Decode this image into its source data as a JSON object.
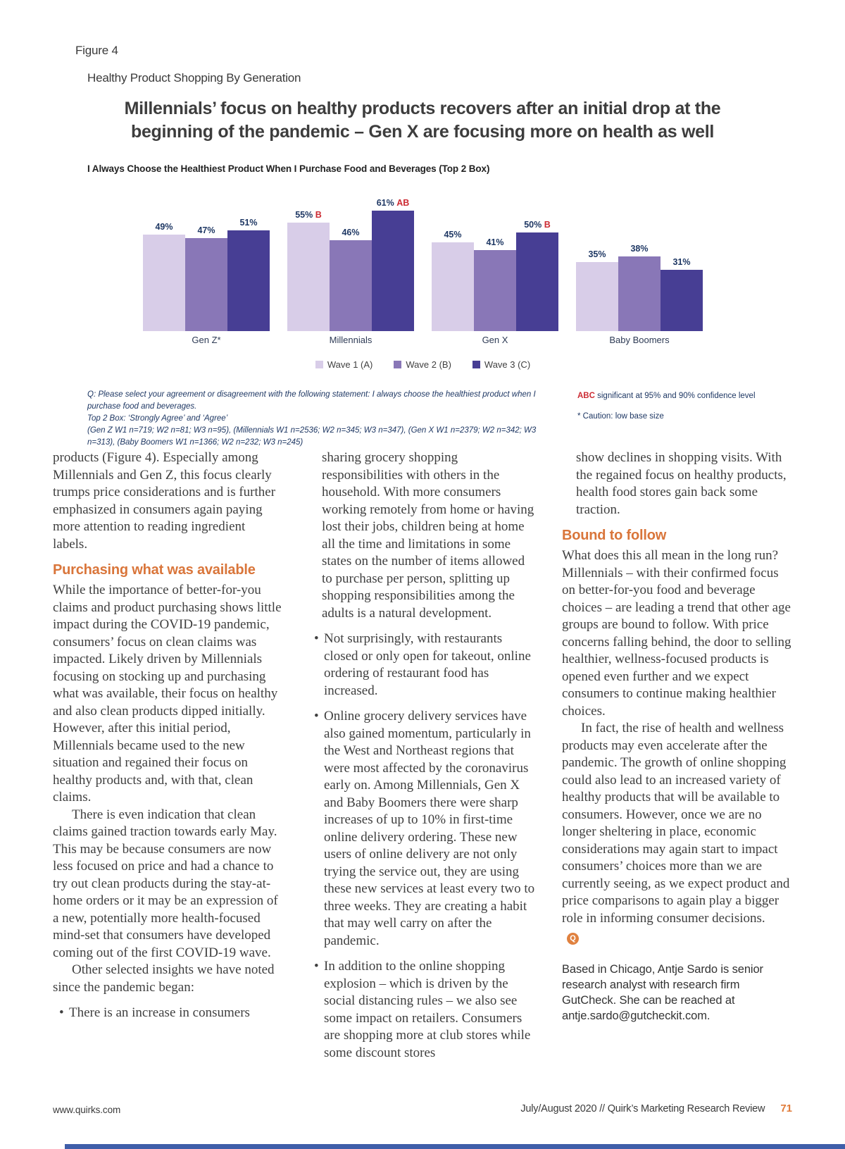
{
  "colors": {
    "accent_orange": "#d9753a",
    "sig_red": "#cc2b33",
    "chart_label_navy": "#1f3864",
    "footnote_navy": "#1f3864",
    "page_edge_blue": "#3f5ea9"
  },
  "figure": {
    "label": "Figure 4",
    "subtitle": "Healthy Product Shopping By Generation",
    "title_line1": "Millennials’ focus on healthy products recovers after an initial drop at the",
    "title_line2": "beginning of the pandemic – Gen X are focusing more on health as well"
  },
  "chart_data": {
    "type": "bar",
    "title": "I Always Choose the Healthiest Product When I Purchase Food and Beverages (Top 2 Box)",
    "categories": [
      "Gen Z*",
      "Millennials",
      "Gen X",
      "Baby Boomers"
    ],
    "series": [
      {
        "name": "Wave 1 (A)",
        "color": "#d8cde8",
        "values": [
          49,
          55,
          45,
          35
        ],
        "sig": [
          "",
          "B",
          "",
          ""
        ]
      },
      {
        "name": "Wave 2 (B)",
        "color": "#8977b7",
        "values": [
          47,
          46,
          41,
          38
        ],
        "sig": [
          "",
          "",
          "",
          ""
        ]
      },
      {
        "name": "Wave 3 (C)",
        "color": "#473e94",
        "values": [
          51,
          61,
          50,
          31
        ],
        "sig": [
          "",
          "AB",
          "B",
          ""
        ]
      }
    ],
    "ylim": [
      0,
      70
    ],
    "grid": false,
    "legend_position": "bottom"
  },
  "footnotes": {
    "line1": "Q: Please select your agreement or disagreement with the following statement: I always choose the healthiest product when I purchase food and beverages.",
    "line2": "Top 2 Box: ‘Strongly Agree’ and ‘Agree’",
    "line3": "(Gen Z W1 n=719; W2 n=81; W3 n=95), (Millennials W1 n=2536; W2 n=345; W3 n=347), (Gen X W1 n=2379; W2 n=342; W3 n=313), (Baby Boomers W1 n=1366; W2 n=232; W3 n=245)",
    "sig_abc": "ABC",
    "sig_rest": " significant at 95% and 90% confidence level",
    "caution": "* Caution: low base size"
  },
  "article": {
    "bullet_glyph": "•",
    "end_marker_glyph": "Q",
    "columns": [
      {
        "blocks": [
          {
            "t": "p",
            "text": "products (Figure 4). Especially among Millennials and Gen Z, this focus clearly trumps price considerations and is further emphasized in consumers again paying more attention to reading ingredient labels."
          },
          {
            "t": "h",
            "text": "Purchasing what was available"
          },
          {
            "t": "p",
            "text": "While the importance of better-for-you claims and product purchasing shows little impact during the COVID-19 pandemic, consumers’ focus on clean claims was impacted. Likely driven by Millennials focusing on stocking up and purchasing what was available, their focus on healthy and also clean products dipped initially. However, after this initial period, Millennials became used to the new situation and regained their focus on healthy products and, with that, clean claims."
          },
          {
            "t": "pi",
            "text": "There is even indication that clean claims gained traction towards early May. This may be because consumers are now less focused on price and had a chance to try out clean products during the stay-at-home orders or it may be an expression of a new, potentially more health-focused mind-set that consumers have developed coming out of the first COVID-19 wave."
          },
          {
            "t": "pi",
            "text": "Other selected insights we have noted since the pandemic began:"
          },
          {
            "t": "b",
            "text": "There is an increase in consumers"
          }
        ]
      },
      {
        "blocks": [
          {
            "t": "cont",
            "text": "sharing grocery shopping responsibilities with others in the household. With more consumers working remotely from home or having lost their jobs, children being at home all the time and limitations in some states on the number of items allowed to purchase per person, splitting up shopping responsibilities among the adults is a natural development."
          },
          {
            "t": "b",
            "text": "Not surprisingly, with restaurants closed or only open for takeout, online ordering of restaurant food has increased."
          },
          {
            "t": "b",
            "text": "Online grocery delivery services have also gained momentum, particularly in the West and Northeast regions that were most affected by the coronavirus early on. Among Millennials, Gen X and Baby Boomers there were sharp increases of up to 10% in first-time online delivery ordering. These new users of online delivery are not only trying the service out, they are using these new services at least every two to three weeks. They are creating a habit that may well carry on after the pandemic."
          },
          {
            "t": "b",
            "text": "In addition to the online shopping explosion – which is driven by the social distancing rules – we also see some impact on retailers. Consumers are shopping more at club stores while some discount stores"
          }
        ]
      },
      {
        "blocks": [
          {
            "t": "cont",
            "text": "show declines in shopping visits. With the regained focus on healthy products, health food stores gain back some traction."
          },
          {
            "t": "h",
            "text": "Bound to follow"
          },
          {
            "t": "p",
            "text": "What does this all mean in the long run? Millennials – with their confirmed focus on better-for-you food and beverage choices – are leading a trend that other age groups are bound to follow. With price concerns falling behind, the door to selling healthier, wellness-focused products is opened even further and we expect consumers to continue making healthier choices."
          },
          {
            "t": "pi",
            "end": true,
            "text": "In fact, the rise of health and wellness products may even accelerate after the pandemic. The growth of online shopping could also lead to an increased variety of healthy products that will be available to consumers. However, once we are no longer sheltering in place, economic considerations may again start to impact consumers’ choices more than we are currently seeing, as we expect product and price comparisons to again play a bigger role in informing consumer decisions."
          },
          {
            "t": "bio",
            "text": "Based in Chicago, Antje Sardo is senior research analyst with research firm GutCheck. She can be reached at antje.sardo@gutcheckit.com."
          }
        ]
      }
    ]
  },
  "footer": {
    "site": "www.quirks.com",
    "issue": "July/August 2020 // Quirk’s Marketing Research Review",
    "page": "71"
  }
}
